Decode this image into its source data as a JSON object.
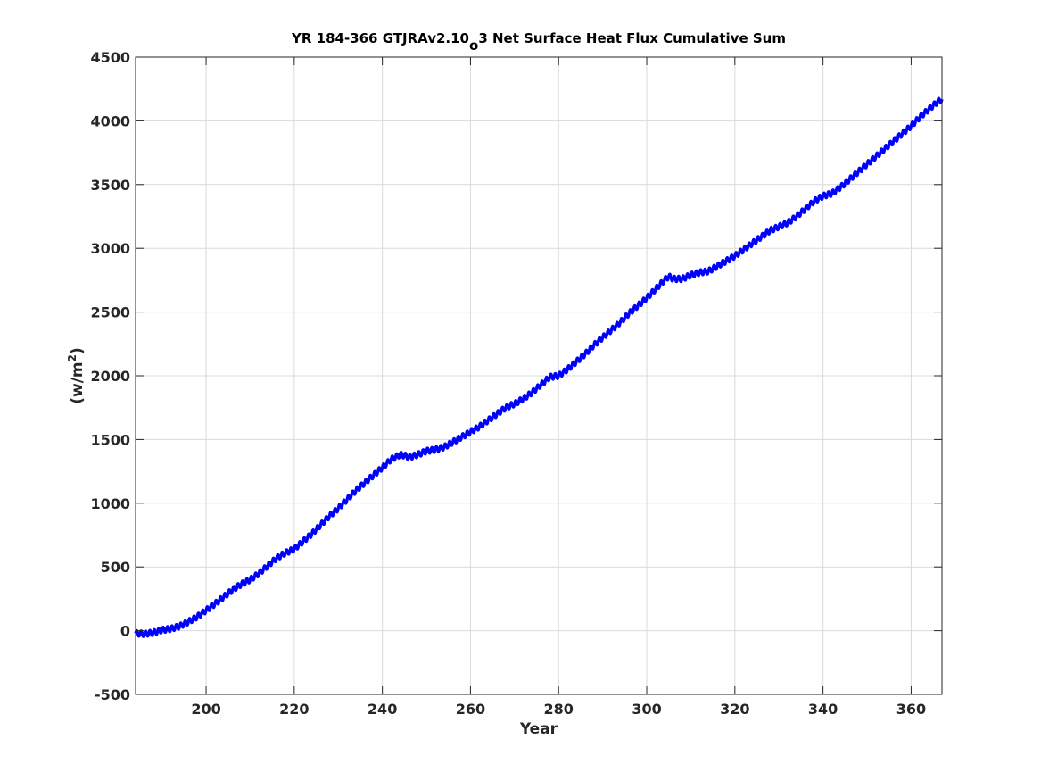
{
  "chart_data": {
    "type": "line",
    "title": {
      "prefix": "YR 184-366 GTJRAv2.10",
      "subscript": "o",
      "suffix": "3 Net Surface Heat Flux  Cumulative Sum"
    },
    "xlabel": "Year",
    "ylabel": {
      "base": "(w/m",
      "superscript": "2",
      "close": ")"
    },
    "xlim": [
      184,
      367
    ],
    "ylim": [
      -500,
      4500
    ],
    "xticks": [
      200,
      220,
      240,
      260,
      280,
      300,
      320,
      340,
      360
    ],
    "yticks": [
      -500,
      0,
      500,
      1000,
      1500,
      2000,
      2500,
      3000,
      3500,
      4000,
      4500
    ],
    "grid": true,
    "series": [
      {
        "color": "#0000ff",
        "seasonal_amplitude": 22,
        "x": [
          184,
          186,
          188,
          190,
          192,
          194,
          196,
          198,
          200,
          202,
          204,
          206,
          208,
          210,
          212,
          214,
          216,
          218,
          220,
          222,
          224,
          226,
          228,
          230,
          232,
          234,
          236,
          238,
          240,
          242,
          244,
          245,
          246,
          248,
          250,
          252,
          254,
          256,
          258,
          260,
          262,
          264,
          266,
          268,
          270,
          272,
          274,
          276,
          278,
          280,
          282,
          284,
          286,
          288,
          290,
          292,
          294,
          296,
          298,
          300,
          302,
          304,
          305,
          306,
          308,
          310,
          312,
          314,
          316,
          318,
          320,
          322,
          324,
          326,
          328,
          330,
          332,
          334,
          336,
          338,
          340,
          342,
          344,
          346,
          348,
          350,
          352,
          354,
          356,
          358,
          360,
          362,
          364,
          366,
          367
        ],
        "y": [
          -20,
          -25,
          -15,
          5,
          15,
          35,
          70,
          110,
          160,
          210,
          265,
          320,
          365,
          400,
          450,
          510,
          570,
          610,
          640,
          700,
          760,
          830,
          900,
          960,
          1030,
          1100,
          1160,
          1220,
          1280,
          1345,
          1380,
          1375,
          1360,
          1380,
          1410,
          1420,
          1440,
          1480,
          1520,
          1560,
          1600,
          1650,
          1700,
          1750,
          1780,
          1820,
          1870,
          1930,
          1990,
          2000,
          2050,
          2110,
          2170,
          2240,
          2300,
          2360,
          2420,
          2490,
          2550,
          2610,
          2680,
          2750,
          2780,
          2760,
          2760,
          2790,
          2810,
          2820,
          2860,
          2900,
          2940,
          2990,
          3040,
          3090,
          3140,
          3170,
          3200,
          3250,
          3310,
          3370,
          3410,
          3430,
          3480,
          3540,
          3600,
          3660,
          3720,
          3780,
          3840,
          3900,
          3960,
          4030,
          4090,
          4150,
          4170
        ]
      }
    ]
  }
}
